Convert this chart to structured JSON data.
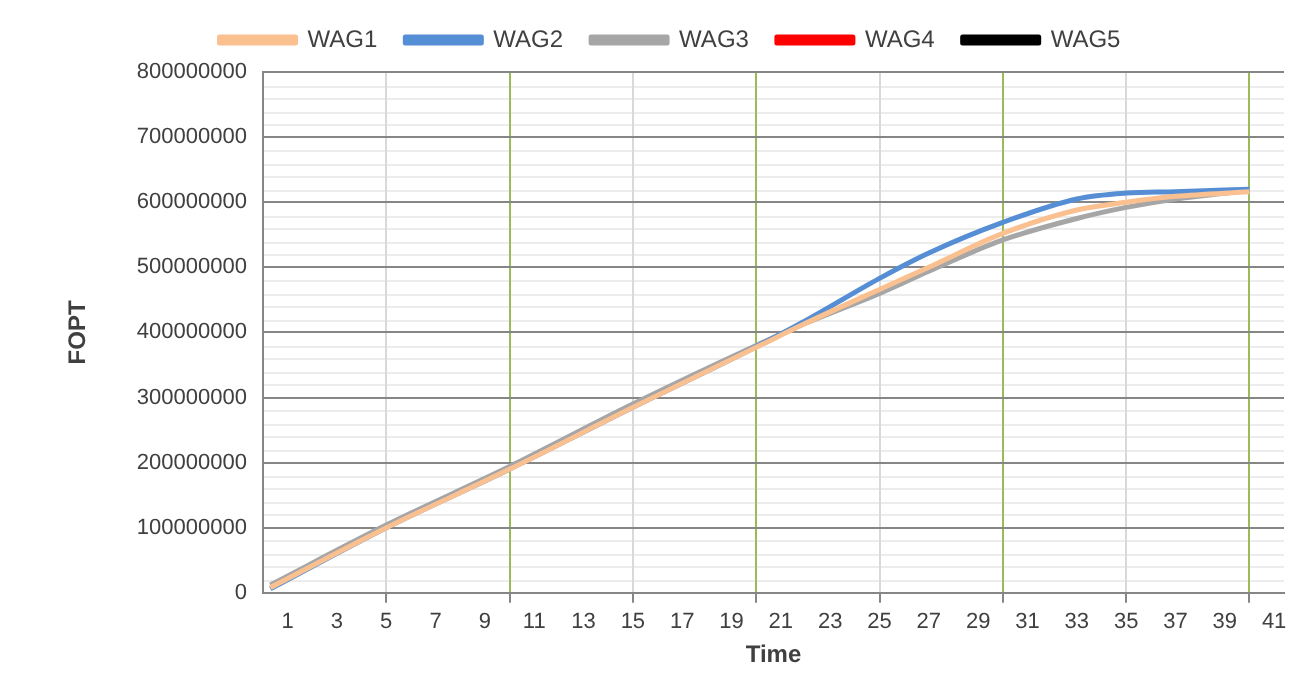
{
  "chart_data": {
    "type": "line",
    "xlabel": "Time",
    "ylabel": "FOPT",
    "x": [
      0.3,
      5,
      10,
      15,
      20,
      22,
      25,
      27,
      30,
      33,
      35,
      37,
      40
    ],
    "series": [
      {
        "name": "WAG1",
        "color": "#fac090",
        "values": [
          8000000,
          100000000,
          190000000,
          285000000,
          377000000,
          414000000,
          466000000,
          500000000,
          552000000,
          588000000,
          600000000,
          609000000,
          616000000
        ]
      },
      {
        "name": "WAG2",
        "color": "#558ed5",
        "values": [
          6000000,
          100000000,
          190000000,
          285000000,
          378000000,
          418000000,
          483000000,
          522000000,
          569000000,
          605000000,
          614000000,
          616000000,
          620000000
        ]
      },
      {
        "name": "WAG3",
        "color": "#a6a6a6",
        "values": [
          12000000,
          104000000,
          194000000,
          290000000,
          380000000,
          414000000,
          460000000,
          494000000,
          542000000,
          575000000,
          592000000,
          605000000,
          618000000
        ]
      },
      {
        "name": "WAG4",
        "color": "#ff0000",
        "values": [
          null,
          null,
          null,
          null,
          null,
          null,
          null,
          null,
          null,
          null,
          null,
          null,
          null
        ]
      },
      {
        "name": "WAG5",
        "color": "#000000",
        "values": [
          null,
          null,
          null,
          null,
          null,
          null,
          null,
          null,
          null,
          null,
          null,
          null,
          null
        ]
      }
    ],
    "xlim": [
      0,
      41.4
    ],
    "xticks": [
      1,
      3,
      5,
      7,
      9,
      {
        "value": 10,
        "label": null
      },
      11,
      13,
      15,
      17,
      19,
      {
        "value": 20,
        "label": null
      },
      21,
      23,
      25,
      27,
      29,
      {
        "value": 30,
        "label": null
      },
      31,
      33,
      35,
      37,
      39,
      {
        "value": 40,
        "label": null
      },
      41
    ],
    "ylim": [
      0,
      800000000
    ],
    "yticks": [
      0,
      100000000,
      200000000,
      300000000,
      400000000,
      500000000,
      600000000,
      700000000,
      800000000
    ],
    "grid": true,
    "legend": "top",
    "marker": "none",
    "line_style": "solid"
  }
}
